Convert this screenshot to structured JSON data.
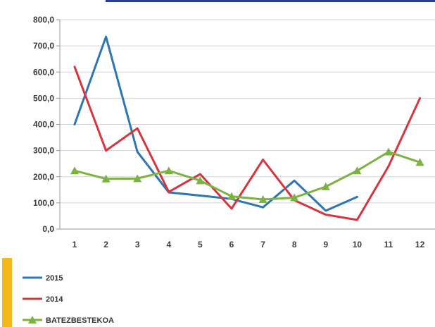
{
  "chart_data": {
    "type": "line",
    "x": [
      "1",
      "2",
      "3",
      "4",
      "5",
      "6",
      "7",
      "8",
      "9",
      "10",
      "11",
      "12"
    ],
    "yticks": [
      "0,0",
      "100,0",
      "200,0",
      "300,0",
      "400,0",
      "500,0",
      "600,0",
      "700,0",
      "800,0"
    ],
    "ylim": [
      0,
      800
    ],
    "grid": true,
    "legend_position": "bottom-left",
    "series": [
      {
        "name": "2015",
        "color": "#2e75b6",
        "marker": "none",
        "values": [
          400,
          735,
          295,
          140,
          128,
          115,
          83,
          185,
          70,
          123,
          null,
          null
        ]
      },
      {
        "name": "2014",
        "color": "#d9343e",
        "marker": "none",
        "values": [
          620,
          300,
          385,
          142,
          210,
          78,
          265,
          110,
          55,
          35,
          240,
          500
        ]
      },
      {
        "name": "BATEZBESTEKOA",
        "color": "#7bb342",
        "marker": "triangle",
        "values": [
          223,
          192,
          193,
          223,
          185,
          125,
          113,
          120,
          162,
          223,
          295,
          255
        ]
      }
    ]
  }
}
